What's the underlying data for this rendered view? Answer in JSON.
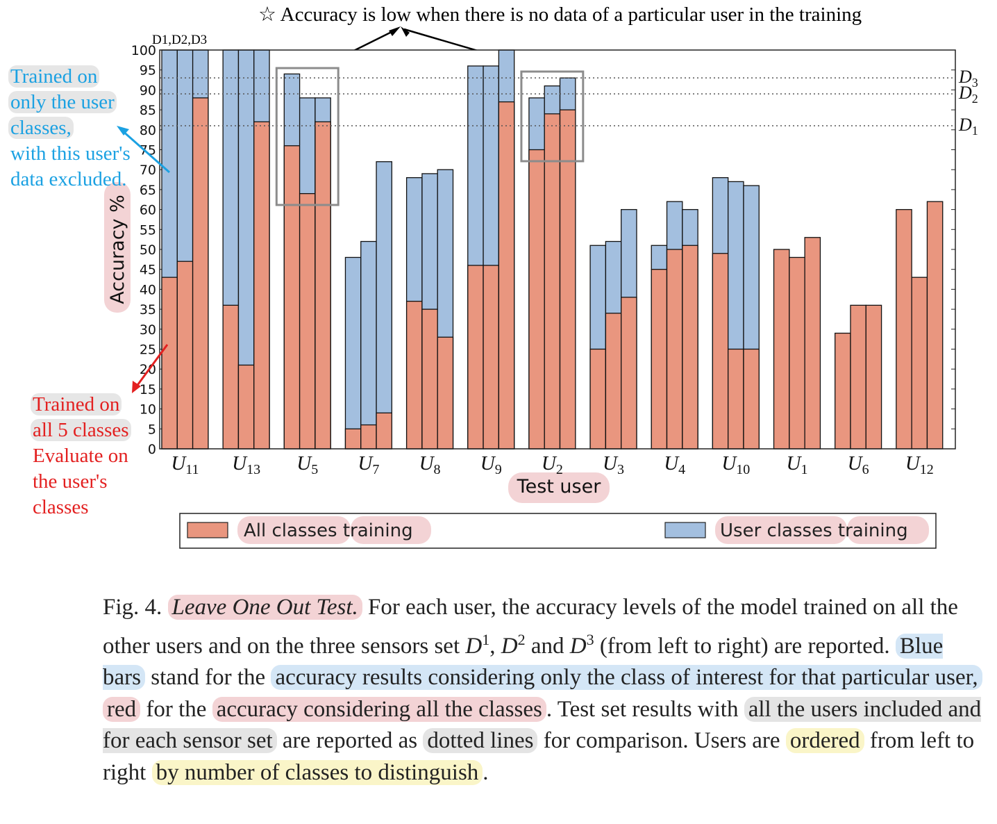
{
  "chart_data": {
    "type": "bar",
    "title": "",
    "xlabel": "Test user",
    "ylabel": "Accuracy %",
    "ylim": [
      0,
      100
    ],
    "yticks": [
      0,
      5,
      10,
      15,
      20,
      25,
      30,
      35,
      40,
      45,
      50,
      55,
      60,
      65,
      70,
      75,
      80,
      85,
      90,
      95,
      100
    ],
    "categories": [
      "U11",
      "U13",
      "U5",
      "U7",
      "U8",
      "U9",
      "U2",
      "U3",
      "U4",
      "U10",
      "U1",
      "U6",
      "U12"
    ],
    "sensor_sets_per_group": [
      "D1",
      "D2",
      "D3"
    ],
    "group_label": "D1,D2,D3",
    "series": [
      {
        "name": "All classes training",
        "color": "#e9967f",
        "values": [
          [
            43,
            47,
            88
          ],
          [
            36,
            21,
            82
          ],
          [
            76,
            64,
            82
          ],
          [
            5,
            6,
            9
          ],
          [
            37,
            35,
            28
          ],
          [
            46,
            46,
            87
          ],
          [
            75,
            84,
            85
          ],
          [
            25,
            34,
            38
          ],
          [
            45,
            50,
            51
          ],
          [
            49,
            25,
            25
          ],
          [
            50,
            48,
            53
          ],
          [
            29,
            36,
            36
          ],
          [
            60,
            43,
            62
          ]
        ]
      },
      {
        "name": "User classes training",
        "color": "#a3bfdf",
        "values": [
          [
            100,
            100,
            100
          ],
          [
            100,
            100,
            100
          ],
          [
            94,
            88,
            88
          ],
          [
            48,
            52,
            72
          ],
          [
            68,
            69,
            70
          ],
          [
            96,
            96,
            100
          ],
          [
            88,
            91,
            93
          ],
          [
            51,
            52,
            60
          ],
          [
            51,
            62,
            60
          ],
          [
            68,
            67,
            66
          ],
          [
            null,
            null,
            null
          ],
          [
            null,
            null,
            null
          ],
          [
            null,
            null,
            null
          ]
        ]
      }
    ],
    "reference_lines": [
      {
        "label": "D3",
        "value": 93
      },
      {
        "label": "D2",
        "value": 89
      },
      {
        "label": "D1",
        "value": 81
      }
    ],
    "legend": {
      "position": "bottom",
      "items": [
        "All classes training",
        "User classes training"
      ]
    }
  },
  "annotations": {
    "top_note": "☆ Accuracy is low when there is no data of a particular user in the training",
    "blue_note": [
      "Trained on",
      "only the user",
      "classes,",
      "with this user's",
      "data excluded."
    ],
    "red_note_trained": [
      "Trained on",
      "all 5 classes"
    ],
    "red_note_eval": [
      "Evaluate on",
      "the user's",
      "classes"
    ]
  },
  "colors": {
    "red_bar": "#e9967f",
    "blue_bar": "#a3bfdf",
    "blue_text": "#1ba1e2",
    "red_text": "#e32020",
    "box": "#8c8c8c"
  },
  "caption": {
    "fig": "Fig. 4.",
    "title": "Leave One Out Test.",
    "t1": " For each user, the accuracy levels of the model trained on all the other users and on the three sensors set ",
    "d1": "D",
    "s1": "1",
    "t2": ", ",
    "d2": "D",
    "s2": "2",
    "t3": " and ",
    "d3": "D",
    "s3": "3",
    "t4": " (from left to right) are reported. ",
    "blue_bars": "Blue bars",
    "t5": " stand for the ",
    "acc_results": "accuracy results considering only the class of interest for that particular user,",
    "t6": " ",
    "red": "red",
    "t7": " for the ",
    "acc_all": "accuracy considering all the classes",
    "t8": ". Test set results with ",
    "all_users": "all the users included and for each sensor set",
    "t9": " are reported as ",
    "dotted": "dotted lines",
    "t10": " for comparison. Users are ",
    "ordered": "ordered",
    "t11": " from left to right ",
    "by_number": "by number of classes to distinguish",
    "t12": "."
  }
}
